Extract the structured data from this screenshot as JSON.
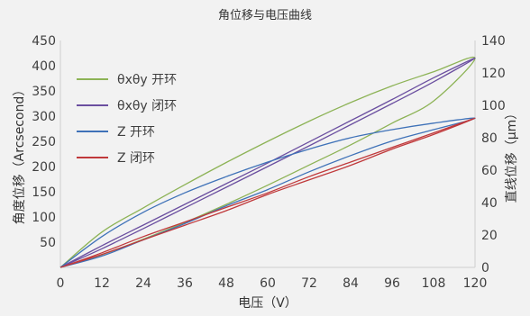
{
  "chart_data": {
    "type": "line",
    "title": "角位移与电压曲线",
    "xlabel": "电压（V）",
    "ylabel_left": "角度位移（Arcsecond）",
    "ylabel_right": "直线位移（μm）",
    "xlim": [
      0,
      120
    ],
    "ylim_left": [
      0,
      450
    ],
    "ylim_right": [
      0,
      140
    ],
    "x_ticks": [
      "0",
      "12",
      "24",
      "36",
      "48",
      "60",
      "72",
      "84",
      "96",
      "108",
      "120"
    ],
    "y_left_ticks": [
      "50",
      "100",
      "150",
      "200",
      "250",
      "300",
      "350",
      "400",
      "450"
    ],
    "y_right_ticks": [
      "0",
      "20",
      "40",
      "60",
      "80",
      "100",
      "120",
      "140"
    ],
    "grid": false,
    "legend_position": "top-left",
    "series": [
      {
        "name": "θxθy 开环",
        "color": "#8db356",
        "axis": "left",
        "x": [
          0,
          12,
          24,
          36,
          48,
          60,
          72,
          84,
          96,
          108,
          120,
          108,
          96,
          84,
          72,
          60,
          48,
          36,
          24,
          12,
          0
        ],
        "y": [
          0,
          25,
          56,
          89,
          125,
          163,
          203,
          243,
          286,
          330,
          415,
          388,
          360,
          327,
          290,
          250,
          208,
          164,
          118,
          70,
          0
        ]
      },
      {
        "name": "θxθy 闭环",
        "color": "#6b4fa0",
        "axis": "left",
        "x": [
          0,
          12,
          24,
          36,
          48,
          60,
          72,
          84,
          96,
          108,
          120,
          108,
          96,
          84,
          72,
          60,
          48,
          36,
          24,
          12,
          0
        ],
        "y": [
          0,
          37,
          77,
          118,
          159,
          200,
          241,
          283,
          325,
          368,
          415,
          376,
          333,
          291,
          249,
          207,
          166,
          125,
          84,
          43,
          0
        ]
      },
      {
        "name": "Z 开环",
        "color": "#3f72b8",
        "axis": "right",
        "x": [
          0,
          12,
          24,
          36,
          48,
          60,
          72,
          84,
          96,
          108,
          120,
          108,
          96,
          84,
          72,
          60,
          48,
          36,
          24,
          12,
          0
        ],
        "y": [
          0,
          7,
          17,
          27,
          38,
          48,
          59,
          69,
          78,
          85,
          92,
          89,
          85,
          80,
          73,
          65,
          56,
          46,
          34,
          19,
          0
        ]
      },
      {
        "name": "Z 闭环",
        "color": "#c0393b",
        "axis": "right",
        "x": [
          0,
          12,
          24,
          36,
          48,
          60,
          72,
          84,
          96,
          108,
          120,
          108,
          96,
          84,
          72,
          60,
          48,
          36,
          24,
          12,
          0
        ],
        "y": [
          0,
          8,
          17,
          26,
          35,
          45,
          54,
          63,
          73,
          82,
          92,
          83,
          74,
          65,
          56,
          46,
          37,
          28,
          19,
          9,
          0
        ]
      }
    ]
  }
}
